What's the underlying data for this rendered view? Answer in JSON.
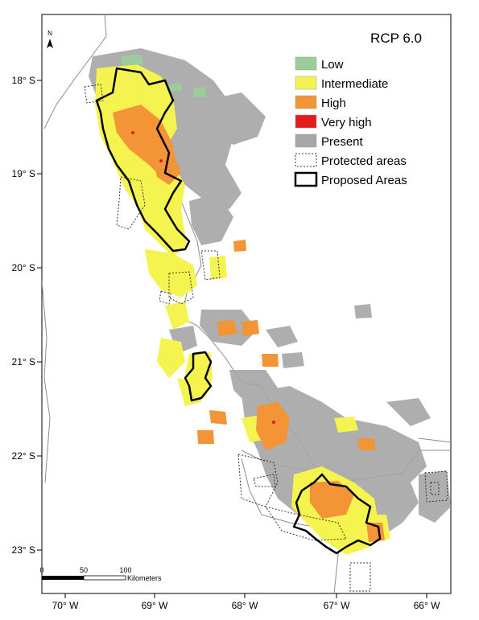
{
  "map": {
    "scenario": "RCP 6.0",
    "north_label": "N",
    "legend": [
      {
        "key": "low",
        "label": "Low",
        "color": "#9bcc9b",
        "style": "fill"
      },
      {
        "key": "intermediate",
        "label": "Intermediate",
        "color": "#f5f34f",
        "style": "fill"
      },
      {
        "key": "high",
        "label": "High",
        "color": "#f39436",
        "style": "fill"
      },
      {
        "key": "very_high",
        "label": "Very high",
        "color": "#e41a1c",
        "style": "fill"
      },
      {
        "key": "present",
        "label": "Present",
        "color": "#a6a6a6",
        "style": "fill"
      },
      {
        "key": "protected",
        "label": "Protected areas",
        "color": "#333333",
        "style": "dotted"
      },
      {
        "key": "proposed",
        "label": "Proposed Areas",
        "color": "#000000",
        "style": "thick"
      }
    ],
    "lat_ticks": [
      "18° S",
      "19° S",
      "20° S",
      "21° S",
      "22° S",
      "23° S"
    ],
    "lon_ticks": [
      "70° W",
      "69° W",
      "68° W",
      "67° W",
      "66° W"
    ],
    "scale_bar": {
      "labels": [
        "0",
        "50",
        "100"
      ],
      "unit": "Kilometers"
    }
  }
}
